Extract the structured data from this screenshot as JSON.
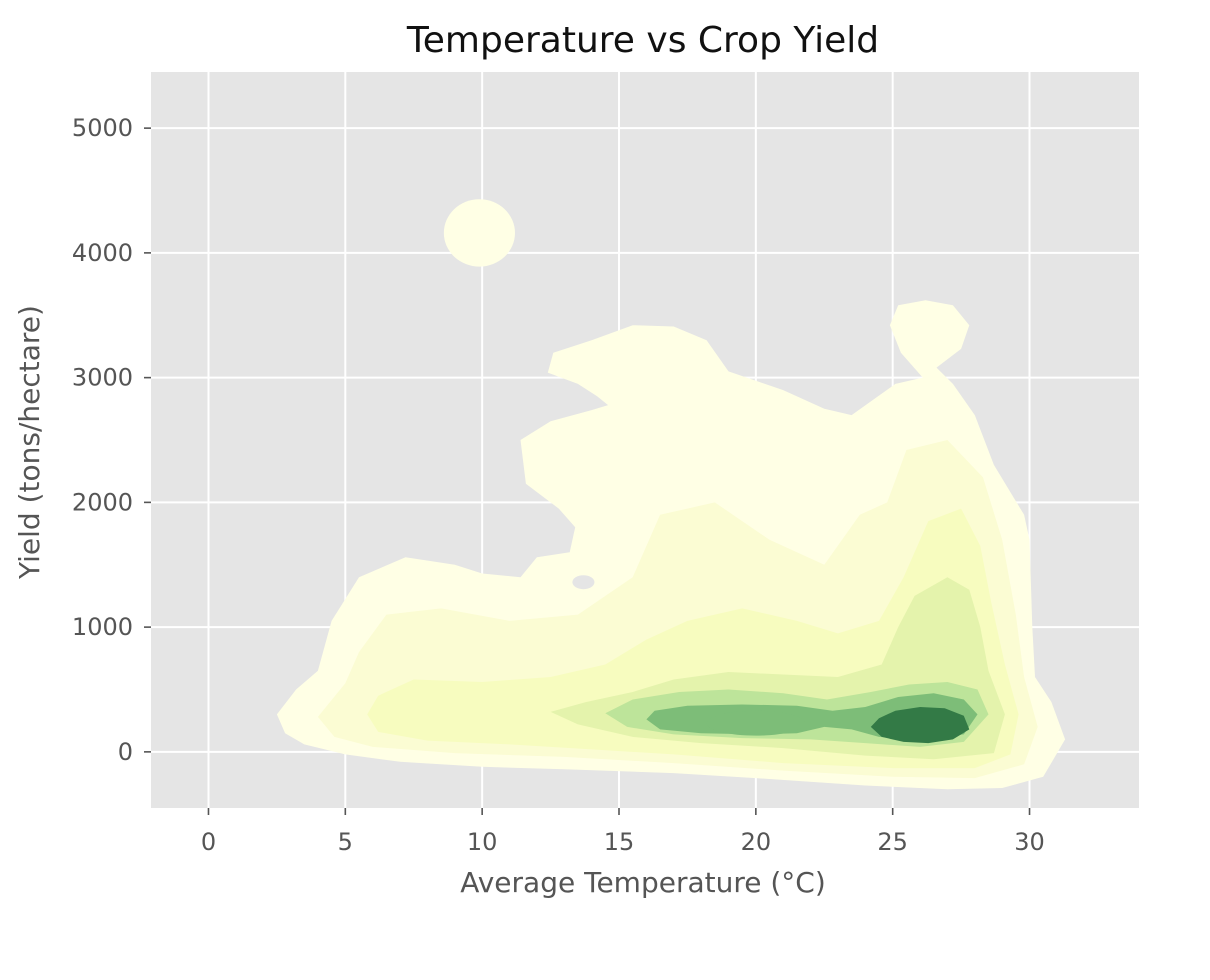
{
  "chart_data": {
    "type": "kde_contour",
    "title": "Temperature vs Crop Yield",
    "xlabel": "Average Temperature (°C)",
    "ylabel": "Yield (tons/hectare)",
    "xlim": [
      -2.1,
      34
    ],
    "ylim": [
      -450,
      5450
    ],
    "xticks": [
      0,
      5,
      10,
      15,
      20,
      25,
      30
    ],
    "yticks": [
      0,
      1000,
      2000,
      3000,
      4000,
      5000
    ],
    "grid": true,
    "legend": "none",
    "style": "ggplot",
    "colormap": "YlGn",
    "density_peaks": [
      {
        "x": 26.2,
        "y": 200,
        "level": 7
      },
      {
        "x": 20.0,
        "y": 230,
        "level": 5
      },
      {
        "x": 26.5,
        "y": 930,
        "level": 3
      },
      {
        "x": 10.0,
        "y": 4160,
        "level": 1
      },
      {
        "x": 26.2,
        "y": 3320,
        "level": 1
      }
    ],
    "contour_levels": [
      {
        "level": 1,
        "color": "#ffffe5"
      },
      {
        "level": 2,
        "color": "#fbfcd3"
      },
      {
        "level": 3,
        "color": "#f7fcbf"
      },
      {
        "level": 4,
        "color": "#e4f3ac"
      },
      {
        "level": 5,
        "color": "#bde49a"
      },
      {
        "level": 6,
        "color": "#7dbd78"
      },
      {
        "level": 7,
        "color": "#337a46"
      }
    ]
  }
}
